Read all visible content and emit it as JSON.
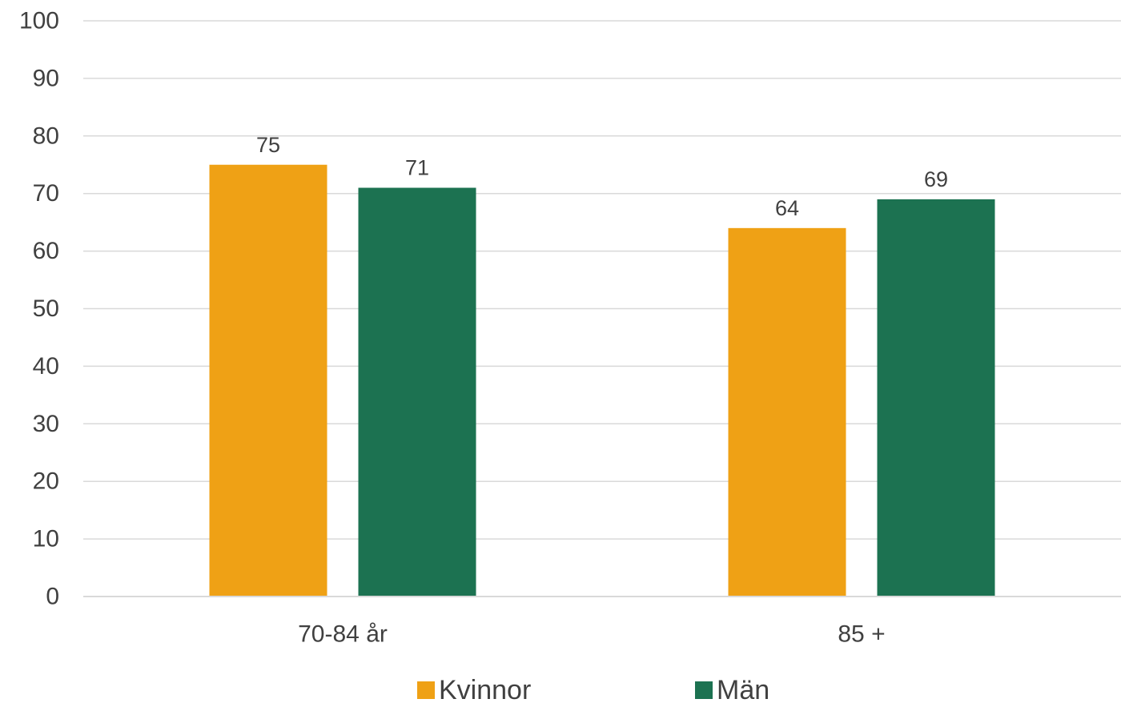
{
  "chart_data": {
    "type": "bar",
    "categories": [
      "70-84 år",
      "85 +"
    ],
    "series": [
      {
        "name": "Kvinnor",
        "values": [
          75,
          64
        ],
        "labels": [
          "75",
          "64"
        ],
        "color": "#EFA115"
      },
      {
        "name": "Män",
        "values": [
          71,
          69
        ],
        "labels": [
          "71",
          "69"
        ],
        "color": "#1C7251"
      }
    ],
    "ylim": [
      0,
      100
    ],
    "yticks": [
      0,
      10,
      20,
      30,
      40,
      50,
      60,
      70,
      80,
      90,
      100
    ],
    "grid": true,
    "grid_color": "#D9D9D9",
    "legend_position": "bottom"
  }
}
